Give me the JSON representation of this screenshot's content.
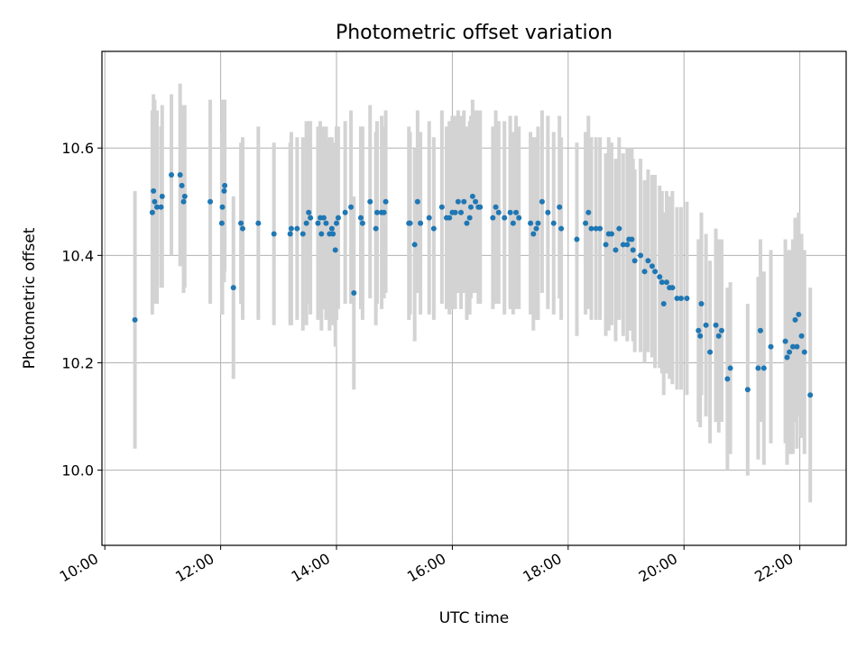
{
  "chart_data": {
    "type": "scatter",
    "title": "Photometric offset variation",
    "xlabel": "UTC time",
    "ylabel": "Photometric offset",
    "x_unit": "hours UTC",
    "xlim": [
      9.95,
      22.8
    ],
    "ylim": [
      9.86,
      10.78
    ],
    "xticks": [
      10,
      12,
      14,
      16,
      18,
      20,
      22
    ],
    "xtick_labels": [
      "10:00",
      "12:00",
      "14:00",
      "16:00",
      "18:00",
      "20:00",
      "22:00"
    ],
    "yticks": [
      10.0,
      10.2,
      10.4,
      10.6
    ],
    "ytick_labels": [
      "10.0",
      "10.2",
      "10.4",
      "10.6"
    ],
    "grid": true,
    "colors": {
      "marker": "#1f77b4",
      "errorbar": "#d3d3d3",
      "grid": "#b0b0b0"
    },
    "series": [
      {
        "points": [
          [
            10.52,
            10.28,
            0.24
          ],
          [
            10.82,
            10.48,
            0.19
          ],
          [
            10.84,
            10.52,
            0.18
          ],
          [
            10.86,
            10.5,
            0.19
          ],
          [
            10.9,
            10.49,
            0.18
          ],
          [
            10.97,
            10.49,
            0.15
          ],
          [
            10.99,
            10.51,
            0.17
          ],
          [
            11.15,
            10.55,
            0.15
          ],
          [
            11.3,
            10.55,
            0.17
          ],
          [
            11.33,
            10.53,
            0.15
          ],
          [
            11.36,
            10.5,
            0.17
          ],
          [
            11.38,
            10.51,
            0.17
          ],
          [
            11.82,
            10.5,
            0.19
          ],
          [
            12.02,
            10.46,
            0.17
          ],
          [
            12.03,
            10.49,
            0.2
          ],
          [
            12.06,
            10.52,
            0.17
          ],
          [
            12.07,
            10.53,
            0.16
          ],
          [
            12.22,
            10.34,
            0.17
          ],
          [
            12.35,
            10.46,
            0.15
          ],
          [
            12.38,
            10.45,
            0.17
          ],
          [
            12.65,
            10.46,
            0.18
          ],
          [
            12.92,
            10.44,
            0.17
          ],
          [
            13.2,
            10.44,
            0.17
          ],
          [
            13.22,
            10.45,
            0.18
          ],
          [
            13.32,
            10.45,
            0.17
          ],
          [
            13.42,
            10.44,
            0.18
          ],
          [
            13.48,
            10.46,
            0.19
          ],
          [
            13.52,
            10.48,
            0.17
          ],
          [
            13.55,
            10.47,
            0.18
          ],
          [
            13.68,
            10.46,
            0.18
          ],
          [
            13.72,
            10.47,
            0.18
          ],
          [
            13.74,
            10.44,
            0.18
          ],
          [
            13.78,
            10.47,
            0.17
          ],
          [
            13.82,
            10.46,
            0.18
          ],
          [
            13.88,
            10.44,
            0.18
          ],
          [
            13.92,
            10.45,
            0.17
          ],
          [
            13.94,
            10.44,
            0.17
          ],
          [
            13.98,
            10.41,
            0.18
          ],
          [
            14.0,
            10.46,
            0.18
          ],
          [
            14.03,
            10.47,
            0.17
          ],
          [
            14.15,
            10.48,
            0.17
          ],
          [
            14.25,
            10.49,
            0.18
          ],
          [
            14.3,
            10.33,
            0.18
          ],
          [
            14.42,
            10.47,
            0.17
          ],
          [
            14.45,
            10.46,
            0.18
          ],
          [
            14.58,
            10.5,
            0.18
          ],
          [
            14.68,
            10.45,
            0.18
          ],
          [
            14.7,
            10.48,
            0.17
          ],
          [
            14.78,
            10.48,
            0.18
          ],
          [
            14.82,
            10.48,
            0.16
          ],
          [
            14.85,
            10.5,
            0.17
          ],
          [
            15.25,
            10.46,
            0.18
          ],
          [
            15.27,
            10.46,
            0.17
          ],
          [
            15.35,
            10.42,
            0.18
          ],
          [
            15.4,
            10.5,
            0.17
          ],
          [
            15.45,
            10.46,
            0.17
          ],
          [
            15.6,
            10.47,
            0.18
          ],
          [
            15.68,
            10.45,
            0.17
          ],
          [
            15.82,
            10.49,
            0.18
          ],
          [
            15.9,
            10.47,
            0.17
          ],
          [
            15.95,
            10.47,
            0.18
          ],
          [
            16.0,
            10.48,
            0.18
          ],
          [
            16.05,
            10.48,
            0.18
          ],
          [
            16.1,
            10.5,
            0.17
          ],
          [
            16.15,
            10.48,
            0.18
          ],
          [
            16.2,
            10.5,
            0.17
          ],
          [
            16.25,
            10.46,
            0.18
          ],
          [
            16.3,
            10.47,
            0.18
          ],
          [
            16.32,
            10.49,
            0.17
          ],
          [
            16.35,
            10.51,
            0.18
          ],
          [
            16.4,
            10.5,
            0.17
          ],
          [
            16.45,
            10.49,
            0.18
          ],
          [
            16.48,
            10.49,
            0.18
          ],
          [
            16.7,
            10.47,
            0.17
          ],
          [
            16.75,
            10.49,
            0.18
          ],
          [
            16.8,
            10.48,
            0.17
          ],
          [
            16.9,
            10.47,
            0.18
          ],
          [
            17.0,
            10.48,
            0.18
          ],
          [
            17.05,
            10.46,
            0.17
          ],
          [
            17.1,
            10.48,
            0.18
          ],
          [
            17.15,
            10.47,
            0.17
          ],
          [
            17.35,
            10.46,
            0.17
          ],
          [
            17.4,
            10.44,
            0.18
          ],
          [
            17.45,
            10.45,
            0.17
          ],
          [
            17.48,
            10.46,
            0.18
          ],
          [
            17.55,
            10.5,
            0.17
          ],
          [
            17.65,
            10.48,
            0.18
          ],
          [
            17.75,
            10.46,
            0.17
          ],
          [
            17.85,
            10.49,
            0.17
          ],
          [
            17.88,
            10.45,
            0.17
          ],
          [
            18.15,
            10.43,
            0.18
          ],
          [
            18.3,
            10.46,
            0.17
          ],
          [
            18.35,
            10.48,
            0.18
          ],
          [
            18.4,
            10.45,
            0.17
          ],
          [
            18.48,
            10.45,
            0.17
          ],
          [
            18.55,
            10.45,
            0.17
          ],
          [
            18.65,
            10.42,
            0.17
          ],
          [
            18.7,
            10.44,
            0.18
          ],
          [
            18.75,
            10.44,
            0.17
          ],
          [
            18.82,
            10.41,
            0.17
          ],
          [
            18.88,
            10.45,
            0.17
          ],
          [
            18.95,
            10.42,
            0.17
          ],
          [
            19.02,
            10.42,
            0.18
          ],
          [
            19.05,
            10.43,
            0.17
          ],
          [
            19.1,
            10.43,
            0.17
          ],
          [
            19.12,
            10.41,
            0.17
          ],
          [
            19.15,
            10.39,
            0.17
          ],
          [
            19.25,
            10.4,
            0.18
          ],
          [
            19.32,
            10.37,
            0.17
          ],
          [
            19.38,
            10.39,
            0.17
          ],
          [
            19.45,
            10.38,
            0.17
          ],
          [
            19.5,
            10.37,
            0.18
          ],
          [
            19.58,
            10.36,
            0.17
          ],
          [
            19.62,
            10.35,
            0.17
          ],
          [
            19.65,
            10.31,
            0.17
          ],
          [
            19.7,
            10.35,
            0.17
          ],
          [
            19.75,
            10.34,
            0.17
          ],
          [
            19.8,
            10.34,
            0.18
          ],
          [
            19.88,
            10.32,
            0.17
          ],
          [
            19.95,
            10.32,
            0.17
          ],
          [
            20.05,
            10.32,
            0.18
          ],
          [
            20.25,
            10.26,
            0.17
          ],
          [
            20.28,
            10.25,
            0.17
          ],
          [
            20.3,
            10.31,
            0.17
          ],
          [
            20.38,
            10.27,
            0.17
          ],
          [
            20.45,
            10.22,
            0.17
          ],
          [
            20.55,
            10.27,
            0.18
          ],
          [
            20.6,
            10.25,
            0.18
          ],
          [
            20.65,
            10.26,
            0.17
          ],
          [
            20.75,
            10.17,
            0.17
          ],
          [
            20.8,
            10.19,
            0.16
          ],
          [
            21.1,
            10.15,
            0.16
          ],
          [
            21.28,
            10.19,
            0.17
          ],
          [
            21.32,
            10.26,
            0.17
          ],
          [
            21.38,
            10.19,
            0.18
          ],
          [
            21.5,
            10.23,
            0.18
          ],
          [
            21.75,
            10.24,
            0.19
          ],
          [
            21.78,
            10.21,
            0.2
          ],
          [
            21.82,
            10.22,
            0.19
          ],
          [
            21.88,
            10.23,
            0.2
          ],
          [
            21.92,
            10.28,
            0.19
          ],
          [
            21.95,
            10.23,
            0.19
          ],
          [
            21.98,
            10.29,
            0.19
          ],
          [
            22.03,
            10.25,
            0.19
          ],
          [
            22.08,
            10.22,
            0.19
          ],
          [
            22.18,
            10.14,
            0.2
          ]
        ]
      }
    ]
  }
}
